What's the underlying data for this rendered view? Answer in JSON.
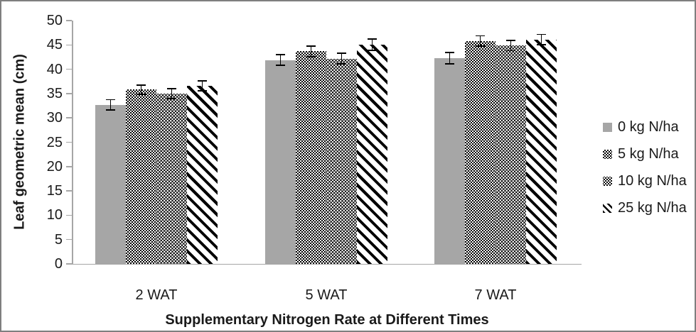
{
  "chart_data": {
    "type": "bar",
    "title": "",
    "xlabel": "Supplementary Nitrogen Rate at Different Times",
    "ylabel": "Leaf geometric mean (cm)",
    "categories": [
      "2 WAT",
      "5 WAT",
      "7 WAT"
    ],
    "series": [
      {
        "name": "0 kg N/ha",
        "pattern": "solid-gray",
        "values": [
          32.7,
          41.9,
          42.3
        ],
        "errors": [
          1.2,
          1.2,
          1.3
        ]
      },
      {
        "name": "5 kg N/ha",
        "pattern": "checker",
        "values": [
          35.8,
          43.7,
          45.8
        ],
        "errors": [
          1.1,
          1.2,
          1.2
        ]
      },
      {
        "name": "10 kg N/ha",
        "pattern": "dots",
        "values": [
          35.0,
          42.2,
          44.9
        ],
        "errors": [
          1.1,
          1.2,
          1.2
        ]
      },
      {
        "name": "25 kg N/ha",
        "pattern": "diagonal-stripes",
        "values": [
          36.6,
          45.1,
          46.1
        ],
        "errors": [
          1.1,
          1.3,
          1.2
        ]
      }
    ],
    "ylim": [
      0,
      50
    ],
    "ytick_step": 5,
    "yticks": [
      0,
      5,
      10,
      15,
      20,
      25,
      30,
      35,
      40,
      45,
      50
    ],
    "grid": false,
    "error_bars": true,
    "legend_position": "right"
  },
  "colors": {
    "bar_gray": "#a6a6a6",
    "pattern_black": "#000000",
    "axis_line": "#a6a6a6",
    "text": "#1a1a1a",
    "frame_border": "#7f7f7f",
    "background": "#ffffff"
  }
}
